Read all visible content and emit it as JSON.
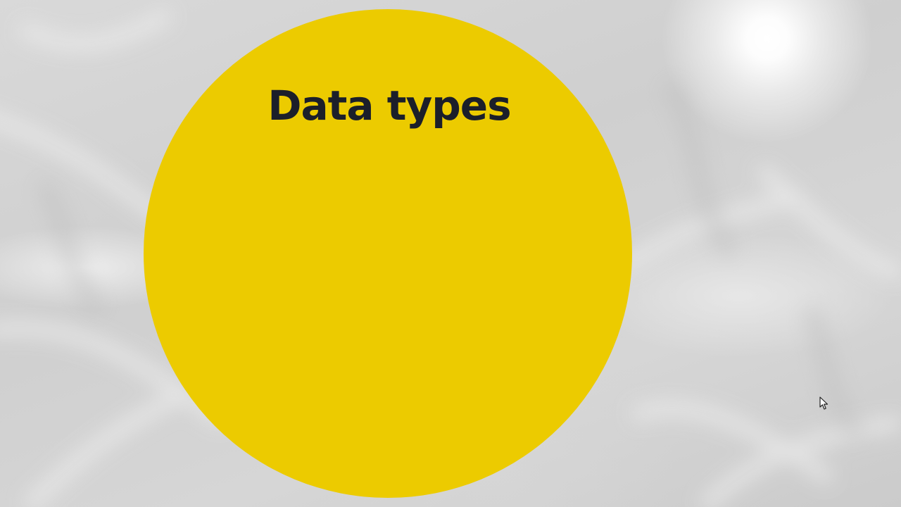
{
  "slide": {
    "title": "Data types"
  },
  "colors": {
    "circle": "#eccb00",
    "title_text": "#1b1f2a",
    "background": "#d4d4d4"
  },
  "icons": {
    "pointer": "mouse-pointer-icon"
  }
}
